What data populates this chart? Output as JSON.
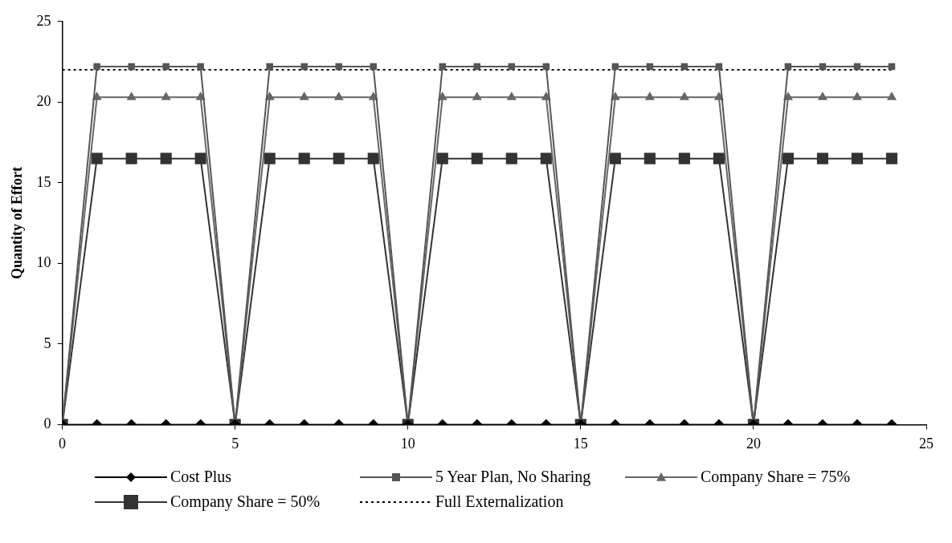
{
  "chart_data": {
    "type": "line",
    "ylabel": "Quantity of Effort",
    "x": [
      0,
      1,
      2,
      3,
      4,
      5,
      6,
      7,
      8,
      9,
      10,
      11,
      12,
      13,
      14,
      15,
      16,
      17,
      18,
      19,
      20,
      21,
      22,
      23,
      24
    ],
    "xlim": [
      0,
      25
    ],
    "xticks": [
      0,
      5,
      10,
      15,
      20,
      25
    ],
    "ylim": [
      0,
      25
    ],
    "yticks": [
      0,
      5,
      10,
      15,
      20,
      25
    ],
    "grid": false,
    "legend": "bottom",
    "series": [
      {
        "name": "Cost Plus",
        "color": "#000000",
        "marker": "diamond",
        "line_style": "solid",
        "values": [
          0,
          0,
          0,
          0,
          0,
          0,
          0,
          0,
          0,
          0,
          0,
          0,
          0,
          0,
          0,
          0,
          0,
          0,
          0,
          0,
          0,
          0,
          0,
          0,
          0
        ]
      },
      {
        "name": "5 Year Plan, No Sharing",
        "color": "#555555",
        "marker": "square",
        "line_style": "solid",
        "values": [
          0,
          22.2,
          22.2,
          22.2,
          22.2,
          0,
          22.2,
          22.2,
          22.2,
          22.2,
          0,
          22.2,
          22.2,
          22.2,
          22.2,
          0,
          22.2,
          22.2,
          22.2,
          22.2,
          0,
          22.2,
          22.2,
          22.2,
          22.2
        ]
      },
      {
        "name": "Company Share = 75%",
        "color": "#666666",
        "marker": "triangle",
        "line_style": "solid",
        "values": [
          0,
          20.3,
          20.3,
          20.3,
          20.3,
          0,
          20.3,
          20.3,
          20.3,
          20.3,
          0,
          20.3,
          20.3,
          20.3,
          20.3,
          0,
          20.3,
          20.3,
          20.3,
          20.3,
          0,
          20.3,
          20.3,
          20.3,
          20.3
        ]
      },
      {
        "name": "Company Share = 50%",
        "color": "#333333",
        "marker": "square",
        "line_style": "solid",
        "values": [
          0,
          16.5,
          16.5,
          16.5,
          16.5,
          0,
          16.5,
          16.5,
          16.5,
          16.5,
          0,
          16.5,
          16.5,
          16.5,
          16.5,
          0,
          16.5,
          16.5,
          16.5,
          16.5,
          0,
          16.5,
          16.5,
          16.5,
          16.5
        ]
      },
      {
        "name": "Full Externalization",
        "color": "#000000",
        "marker": "none",
        "line_style": "dotted",
        "values": [
          22,
          22,
          22,
          22,
          22,
          22,
          22,
          22,
          22,
          22,
          22,
          22,
          22,
          22,
          22,
          22,
          22,
          22,
          22,
          22,
          22,
          22,
          22,
          22,
          22
        ]
      }
    ]
  }
}
